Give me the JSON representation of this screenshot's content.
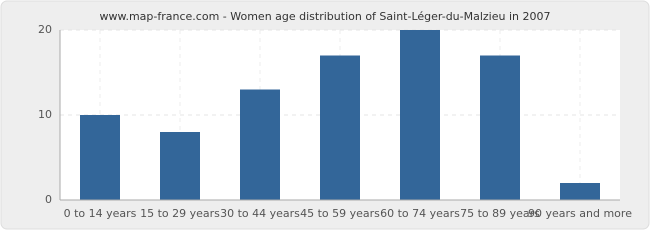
{
  "chart_data": {
    "type": "bar",
    "title": "www.map-france.com - Women age distribution of Saint-Léger-du-Malzieu in 2007",
    "categories": [
      "0 to 14 years",
      "15 to 29 years",
      "30 to 44 years",
      "45 to 59 years",
      "60 to 74 years",
      "75 to 89 years",
      "90 years and more"
    ],
    "values": [
      10,
      8,
      13,
      17,
      20,
      17,
      2
    ],
    "color": "#336699",
    "ylim": [
      0,
      20
    ],
    "yticks": [
      0,
      10,
      20
    ],
    "grid": true
  }
}
